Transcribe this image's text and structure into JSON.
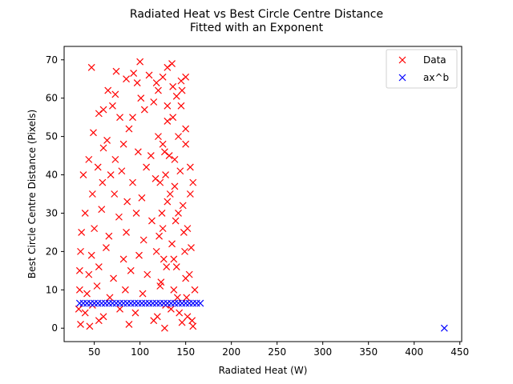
{
  "chart_data": {
    "type": "scatter",
    "title": "Radiated Heat vs Best Circle Centre Distance",
    "subtitle": "Fitted with an Exponent",
    "xlabel": "Radiated Heat (W)",
    "ylabel": "Best Circle Centre Distance (Pixels)",
    "xlim": [
      17,
      452
    ],
    "ylim": [
      -3.5,
      73.5
    ],
    "xticks": [
      50,
      100,
      150,
      200,
      250,
      300,
      350,
      400,
      450
    ],
    "yticks": [
      0,
      10,
      20,
      30,
      40,
      50,
      60,
      70
    ],
    "grid": false,
    "legend_position": "top-right",
    "series": [
      {
        "name": "Data",
        "marker": "x",
        "color": "#ff0000",
        "points": [
          [
            47,
            68
          ],
          [
            100,
            69.5
          ],
          [
            135,
            69
          ],
          [
            130,
            68
          ],
          [
            74,
            67
          ],
          [
            93,
            66.5
          ],
          [
            110,
            66
          ],
          [
            125,
            65.5
          ],
          [
            150,
            65.5
          ],
          [
            85,
            65
          ],
          [
            145,
            64.5
          ],
          [
            97,
            64
          ],
          [
            118,
            64
          ],
          [
            65,
            62
          ],
          [
            60,
            57
          ],
          [
            73,
            61
          ],
          [
            101,
            60
          ],
          [
            115,
            59
          ],
          [
            140,
            60.5
          ],
          [
            70,
            58
          ],
          [
            78,
            55
          ],
          [
            55,
            56
          ],
          [
            92,
            55
          ],
          [
            105,
            57
          ],
          [
            88,
            52
          ],
          [
            130,
            58
          ],
          [
            49,
            51
          ],
          [
            64,
            49
          ],
          [
            120,
            50
          ],
          [
            136,
            55
          ],
          [
            60,
            47
          ],
          [
            82,
            48
          ],
          [
            98,
            46
          ],
          [
            44,
            44
          ],
          [
            73,
            44
          ],
          [
            112,
            45
          ],
          [
            127,
            46
          ],
          [
            150,
            48
          ],
          [
            54,
            42
          ],
          [
            68,
            40
          ],
          [
            80,
            41
          ],
          [
            107,
            42
          ],
          [
            144,
            41
          ],
          [
            38,
            40
          ],
          [
            59,
            38
          ],
          [
            92,
            38
          ],
          [
            117,
            39
          ],
          [
            138,
            37
          ],
          [
            48,
            35
          ],
          [
            72,
            35
          ],
          [
            86,
            33
          ],
          [
            102,
            34
          ],
          [
            130,
            33
          ],
          [
            155,
            35
          ],
          [
            40,
            30
          ],
          [
            58,
            31
          ],
          [
            77,
            29
          ],
          [
            96,
            30
          ],
          [
            113,
            28
          ],
          [
            142,
            30
          ],
          [
            36,
            25
          ],
          [
            50,
            26
          ],
          [
            66,
            24
          ],
          [
            85,
            25
          ],
          [
            104,
            23
          ],
          [
            125,
            26
          ],
          [
            148,
            25
          ],
          [
            35,
            20
          ],
          [
            47,
            19
          ],
          [
            63,
            21
          ],
          [
            82,
            18
          ],
          [
            99,
            19
          ],
          [
            118,
            20
          ],
          [
            137,
            18
          ],
          [
            156,
            21
          ],
          [
            34,
            15
          ],
          [
            44,
            14
          ],
          [
            55,
            16
          ],
          [
            71,
            13
          ],
          [
            90,
            15
          ],
          [
            108,
            14
          ],
          [
            129,
            16
          ],
          [
            150,
            13
          ],
          [
            34,
            10
          ],
          [
            42,
            9
          ],
          [
            53,
            11
          ],
          [
            67,
            8
          ],
          [
            84,
            10
          ],
          [
            103,
            9
          ],
          [
            122,
            11
          ],
          [
            141,
            8
          ],
          [
            160,
            10
          ],
          [
            33,
            5
          ],
          [
            40,
            4
          ],
          [
            48,
            6
          ],
          [
            60,
            3
          ],
          [
            78,
            5
          ],
          [
            95,
            4
          ],
          [
            115,
            2
          ],
          [
            134,
            5
          ],
          [
            152,
            3
          ],
          [
            35,
            1
          ],
          [
            45,
            0.5
          ],
          [
            55,
            2
          ],
          [
            88,
            1
          ],
          [
            127,
            0
          ],
          [
            146,
            1.5
          ],
          [
            158,
            0.5
          ],
          [
            120,
            62
          ],
          [
            145,
            58
          ],
          [
            130,
            54
          ],
          [
            150,
            52
          ],
          [
            125,
            48
          ],
          [
            138,
            44
          ],
          [
            155,
            42
          ],
          [
            122,
            38
          ],
          [
            133,
            35
          ],
          [
            147,
            32
          ],
          [
            124,
            30
          ],
          [
            139,
            28
          ],
          [
            152,
            26
          ],
          [
            121,
            24
          ],
          [
            135,
            22
          ],
          [
            149,
            20
          ],
          [
            126,
            18
          ],
          [
            140,
            16
          ],
          [
            154,
            14
          ],
          [
            123,
            12
          ],
          [
            137,
            10
          ],
          [
            151,
            8
          ],
          [
            128,
            6
          ],
          [
            143,
            4
          ],
          [
            157,
            2
          ],
          [
            119,
            3
          ],
          [
            132,
            45
          ],
          [
            146,
            62
          ],
          [
            128,
            40
          ],
          [
            158,
            38
          ],
          [
            142,
            50
          ],
          [
            136,
            63
          ]
        ]
      },
      {
        "name": "ax^b",
        "marker": "x",
        "color": "#0000ff",
        "points": [
          [
            34,
            6.5
          ],
          [
            38,
            6.5
          ],
          [
            42,
            6.5
          ],
          [
            46,
            6.5
          ],
          [
            50,
            6.5
          ],
          [
            54,
            6.5
          ],
          [
            58,
            6.5
          ],
          [
            62,
            6.5
          ],
          [
            66,
            6.5
          ],
          [
            70,
            6.5
          ],
          [
            74,
            6.5
          ],
          [
            78,
            6.5
          ],
          [
            82,
            6.5
          ],
          [
            86,
            6.5
          ],
          [
            90,
            6.5
          ],
          [
            94,
            6.5
          ],
          [
            98,
            6.5
          ],
          [
            102,
            6.5
          ],
          [
            106,
            6.5
          ],
          [
            110,
            6.5
          ],
          [
            114,
            6.5
          ],
          [
            118,
            6.5
          ],
          [
            122,
            6.5
          ],
          [
            126,
            6.5
          ],
          [
            130,
            6.5
          ],
          [
            134,
            6.5
          ],
          [
            138,
            6.5
          ],
          [
            142,
            6.5
          ],
          [
            146,
            6.5
          ],
          [
            150,
            6.5
          ],
          [
            154,
            6.5
          ],
          [
            158,
            6.5
          ],
          [
            162,
            6.5
          ],
          [
            166,
            6.5
          ],
          [
            433,
            0
          ]
        ]
      }
    ]
  }
}
